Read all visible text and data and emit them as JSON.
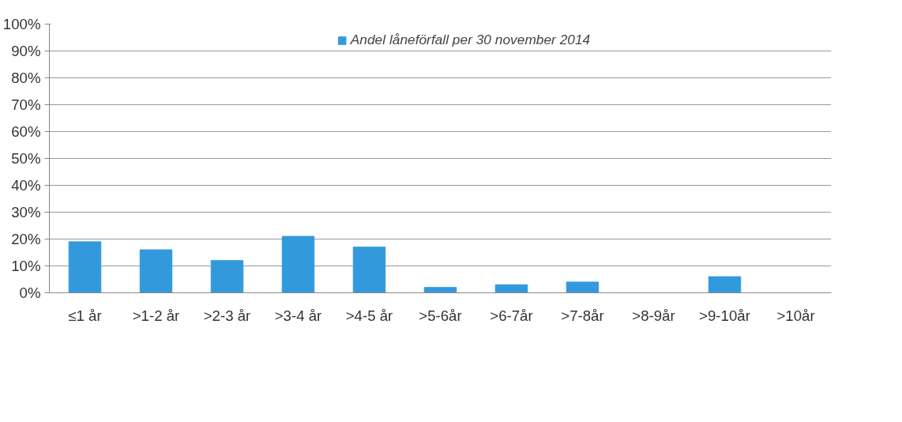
{
  "chart_data": {
    "type": "bar",
    "categories": [
      "≤1 år",
      ">1-2 år",
      ">2-3 år",
      ">3-4 år",
      ">4-5 år",
      ">5-6år",
      ">6-7år",
      ">7-8år",
      ">8-9år",
      ">9-10år",
      ">10år"
    ],
    "series": [
      {
        "name": "Andel låneförfall per 30 november 2014",
        "color": "#3399dd",
        "values": [
          19,
          16,
          12,
          21,
          17,
          2,
          3,
          4,
          0,
          6,
          0
        ]
      }
    ],
    "ylim": [
      0,
      100
    ],
    "yticks": [
      {
        "value": 0,
        "label": "0%"
      },
      {
        "value": 10,
        "label": "10%"
      },
      {
        "value": 20,
        "label": "20%"
      },
      {
        "value": 30,
        "label": "30%"
      },
      {
        "value": 40,
        "label": "40%"
      },
      {
        "value": 50,
        "label": "50%"
      },
      {
        "value": 60,
        "label": "60%"
      },
      {
        "value": 70,
        "label": "70%"
      },
      {
        "value": 80,
        "label": "80%"
      },
      {
        "value": 90,
        "label": "90%"
      },
      {
        "value": 100,
        "label": "100%"
      }
    ],
    "grid": "y",
    "legend": "top"
  }
}
